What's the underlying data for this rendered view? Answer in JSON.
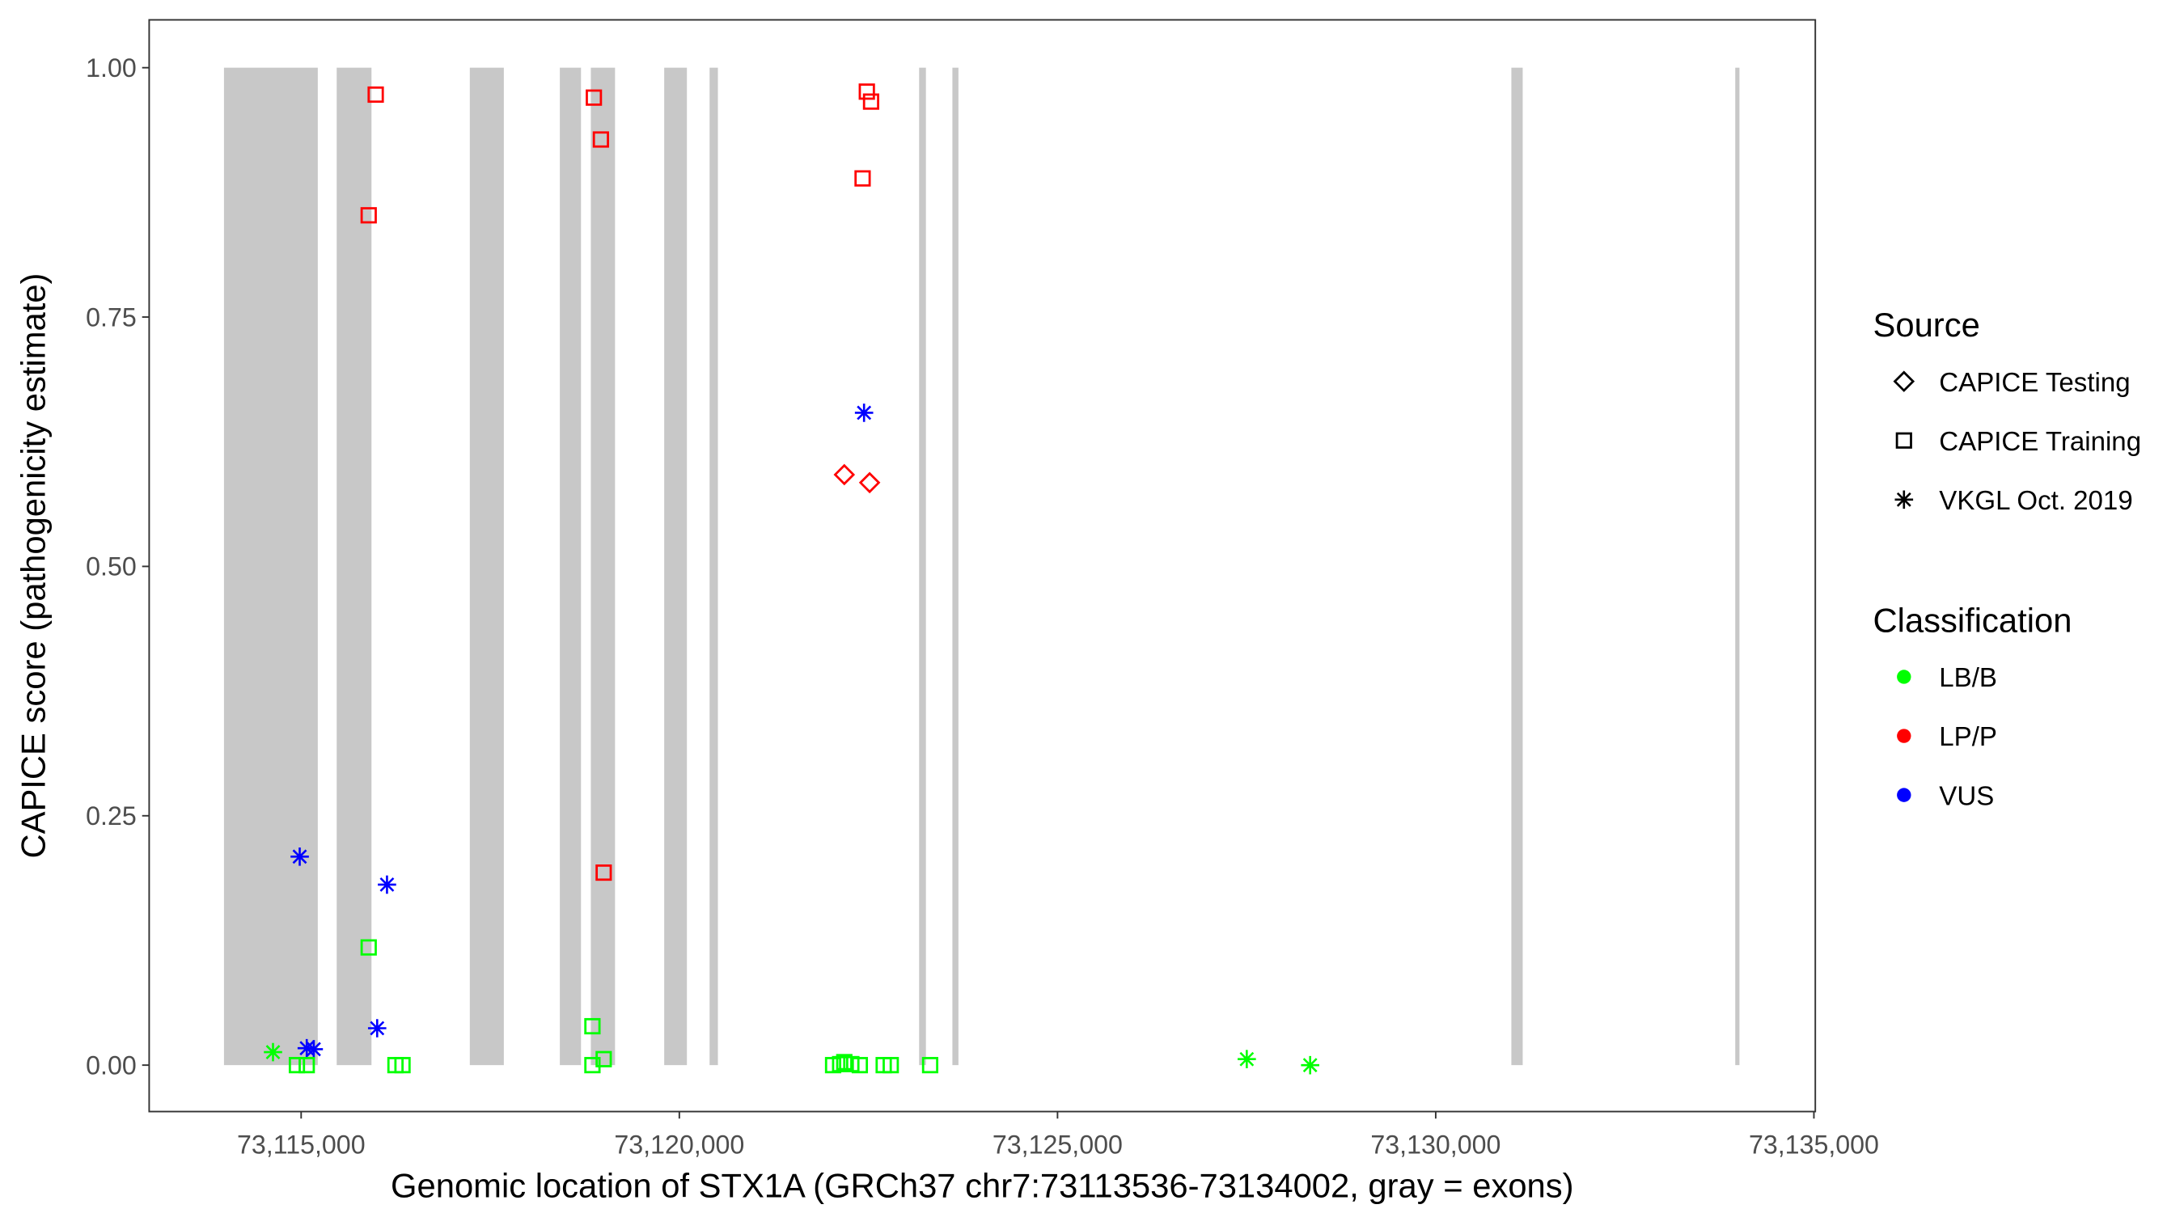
{
  "chart_data": {
    "type": "scatter",
    "xlabel": "Genomic location of STX1A (GRCh37 chr7:73113536-73134002, gray = exons)",
    "ylabel": "CAPICE score (pathogenicity estimate)",
    "xlim": [
      73112000,
      73135000
    ],
    "ylim": [
      -0.05,
      1.05
    ],
    "x_ticks": [
      73115000,
      73120000,
      73125000,
      73130000,
      73135000
    ],
    "x_tick_labels": [
      "73,115,000",
      "73,120,000",
      "73,125,000",
      "73,130,000",
      "73,135,000"
    ],
    "y_ticks": [
      0,
      0.25,
      0.5,
      0.75,
      1.0
    ],
    "y_tick_labels": [
      "0.00",
      "0.25",
      "0.50",
      "0.75",
      "1.00"
    ],
    "grid": false,
    "legend_position": "right",
    "exon_color": "#c8c8c8",
    "exons": [
      [
        73113980,
        73115220
      ],
      [
        73115470,
        73115930
      ],
      [
        73117230,
        73117680
      ],
      [
        73118420,
        73118700
      ],
      [
        73118830,
        73119150
      ],
      [
        73119800,
        73120100
      ],
      [
        73120400,
        73120510
      ],
      [
        73123170,
        73123260
      ],
      [
        73123610,
        73123690
      ],
      [
        73131000,
        73131150
      ],
      [
        73133960,
        73134002
      ]
    ],
    "legend": {
      "source_title": "Source",
      "source_items": [
        {
          "label": "CAPICE Testing",
          "shape": "diamond"
        },
        {
          "label": "CAPICE Training",
          "shape": "square"
        },
        {
          "label": "VKGL Oct. 2019",
          "shape": "asterisk"
        }
      ],
      "class_title": "Classification",
      "class_items": [
        {
          "label": "LB/B",
          "color": "#00ff00"
        },
        {
          "label": "LP/P",
          "color": "#ff0000"
        },
        {
          "label": "VUS",
          "color": "#0000ff"
        }
      ]
    },
    "points": [
      {
        "x": 73115986,
        "y": 0.973,
        "source": "CAPICE Training",
        "class": "LP/P"
      },
      {
        "x": 73115893,
        "y": 0.852,
        "source": "CAPICE Training",
        "class": "LP/P"
      },
      {
        "x": 73118870,
        "y": 0.97,
        "source": "CAPICE Training",
        "class": "LP/P"
      },
      {
        "x": 73118963,
        "y": 0.928,
        "source": "CAPICE Training",
        "class": "LP/P"
      },
      {
        "x": 73119000,
        "y": 0.193,
        "source": "CAPICE Training",
        "class": "LP/P"
      },
      {
        "x": 73122479,
        "y": 0.976,
        "source": "CAPICE Training",
        "class": "LP/P"
      },
      {
        "x": 73122535,
        "y": 0.966,
        "source": "CAPICE Training",
        "class": "LP/P"
      },
      {
        "x": 73122423,
        "y": 0.889,
        "source": "CAPICE Training",
        "class": "LP/P"
      },
      {
        "x": 73122181,
        "y": 0.592,
        "source": "CAPICE Testing",
        "class": "LP/P"
      },
      {
        "x": 73122516,
        "y": 0.584,
        "source": "CAPICE Testing",
        "class": "LP/P"
      },
      {
        "x": 73122442,
        "y": 0.654,
        "source": "VKGL Oct. 2019",
        "class": "VUS"
      },
      {
        "x": 73114981,
        "y": 0.209,
        "source": "VKGL Oct. 2019",
        "class": "VUS"
      },
      {
        "x": 73116135,
        "y": 0.181,
        "source": "VKGL Oct. 2019",
        "class": "VUS"
      },
      {
        "x": 73116005,
        "y": 0.037,
        "source": "VKGL Oct. 2019",
        "class": "VUS"
      },
      {
        "x": 73115074,
        "y": 0.017,
        "source": "VKGL Oct. 2019",
        "class": "VUS"
      },
      {
        "x": 73115167,
        "y": 0.016,
        "source": "VKGL Oct. 2019",
        "class": "VUS"
      },
      {
        "x": 73115893,
        "y": 0.118,
        "source": "CAPICE Training",
        "class": "LB/B"
      },
      {
        "x": 73118851,
        "y": 0.039,
        "source": "CAPICE Training",
        "class": "LB/B"
      },
      {
        "x": 73118851,
        "y": 0.0,
        "source": "CAPICE Training",
        "class": "LB/B"
      },
      {
        "x": 73119000,
        "y": 0.006,
        "source": "CAPICE Training",
        "class": "LB/B"
      },
      {
        "x": 73114944,
        "y": 0.0,
        "source": "CAPICE Training",
        "class": "LB/B"
      },
      {
        "x": 73115074,
        "y": 0.0,
        "source": "CAPICE Training",
        "class": "LB/B"
      },
      {
        "x": 73116247,
        "y": 0.0,
        "source": "CAPICE Training",
        "class": "LB/B"
      },
      {
        "x": 73116340,
        "y": 0.0,
        "source": "CAPICE Training",
        "class": "LB/B"
      },
      {
        "x": 73122033,
        "y": 0.0,
        "source": "CAPICE Training",
        "class": "LB/B"
      },
      {
        "x": 73122126,
        "y": 0.001,
        "source": "CAPICE Training",
        "class": "LB/B"
      },
      {
        "x": 73122181,
        "y": 0.003,
        "source": "CAPICE Training",
        "class": "LB/B"
      },
      {
        "x": 73122274,
        "y": 0.001,
        "source": "CAPICE Training",
        "class": "LB/B"
      },
      {
        "x": 73122386,
        "y": 0.0,
        "source": "CAPICE Training",
        "class": "LB/B"
      },
      {
        "x": 73122702,
        "y": 0.0,
        "source": "CAPICE Training",
        "class": "LB/B"
      },
      {
        "x": 73122795,
        "y": 0.0,
        "source": "CAPICE Training",
        "class": "LB/B"
      },
      {
        "x": 73123316,
        "y": 0.0,
        "source": "CAPICE Training",
        "class": "LB/B"
      },
      {
        "x": 73114628,
        "y": 0.013,
        "source": "VKGL Oct. 2019",
        "class": "LB/B"
      },
      {
        "x": 73127502,
        "y": 0.006,
        "source": "VKGL Oct. 2019",
        "class": "LB/B"
      },
      {
        "x": 73128340,
        "y": 0.0,
        "source": "VKGL Oct. 2019",
        "class": "LB/B"
      }
    ]
  }
}
